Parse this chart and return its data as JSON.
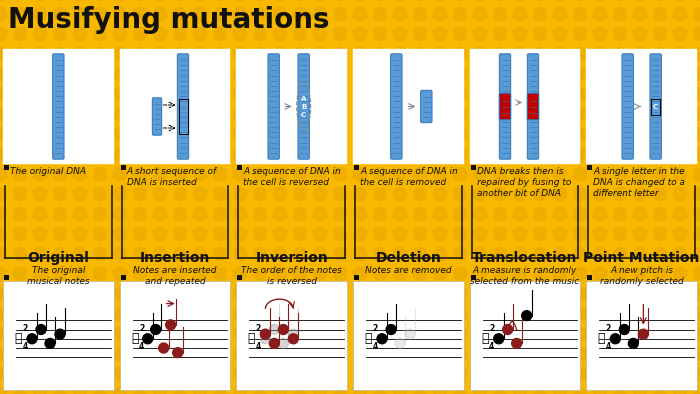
{
  "title": "Musifying mutations",
  "bg_color": "#F9B800",
  "panel_bg": "#FFFFFF",
  "title_color": "#111111",
  "title_fontsize": 20,
  "columns": [
    {
      "label": "Original",
      "desc_top": "The original DNA",
      "desc_bottom": "The original\nmusical notes"
    },
    {
      "label": "Insertion",
      "desc_top": "A short sequence of\nDNA is inserted",
      "desc_bottom": "Notes are inserted\nand repeated"
    },
    {
      "label": "Inversion",
      "desc_top": "A sequence of DNA in\nthe cell is reversed",
      "desc_bottom": "The order of the notes\nis reversed"
    },
    {
      "label": "Deletion",
      "desc_top": "A sequence of DNA in\nthe cell is removed",
      "desc_bottom": "Notes are removed"
    },
    {
      "label": "Translocation",
      "desc_top": "DNA breaks then is\nrepaired by fusing to\nanother bit of DNA",
      "desc_bottom": "A measure is randomly\nselected from the music"
    },
    {
      "label": "Point Mutation",
      "desc_top": "A single letter in the\nDNA is changed to a\ndifferent letter",
      "desc_bottom": "A new pitch is\nrandomly selected"
    }
  ],
  "label_fontsize": 10,
  "desc_fontsize": 6.5,
  "accent_color": "#8B1A1A",
  "dna_blue": "#5B9BD5",
  "dna_dark": "#2E75B6",
  "dna_red": "#C00000"
}
